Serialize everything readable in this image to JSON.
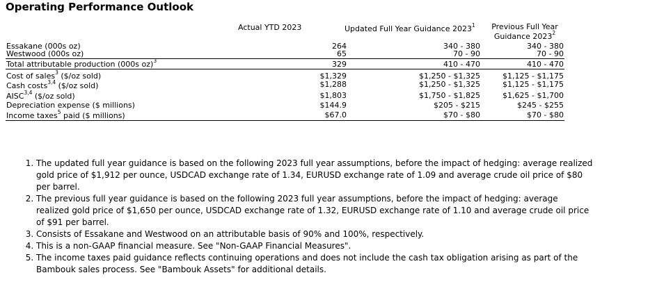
{
  "title": "Operating Performance Outlook",
  "headers": {
    "actual": "Actual YTD 2023",
    "updated": "Updated Full Year Guidance 2023",
    "updated_sup": "1",
    "previous": "Previous Full Year Guidance 2023",
    "previous_sup": "2"
  },
  "rows": [
    {
      "label": "Essakane (000s oz)",
      "sup": "",
      "label_rest": "",
      "actual": "264",
      "updated": "340 - 380",
      "previous": "340 - 380"
    },
    {
      "label": "Westwood (000s oz)",
      "sup": "",
      "label_rest": "",
      "actual": "65",
      "updated": "70 - 90",
      "previous": "70 - 90"
    },
    {
      "label": "Total attributable production (000s oz)",
      "sup": "3",
      "label_rest": "",
      "actual": "329",
      "updated": "410 - 470",
      "previous": "410 - 470"
    },
    {
      "label": "Cost of sales",
      "sup": "3",
      "label_rest": " ($/oz sold)",
      "actual": "$1,329",
      "updated": "$1,250 - $1,325",
      "previous": "$1,125 - $1,175"
    },
    {
      "label": "Cash costs",
      "sup": "3,4",
      "label_rest": " ($/oz sold)",
      "actual": "$1,288",
      "updated": "$1,250 - $1,325",
      "previous": "$1,125 - $1,175"
    },
    {
      "label": "AISC",
      "sup": "3,4",
      "label_rest": " ($/oz sold)",
      "actual": "$1,803",
      "updated": "$1,750 - $1,825",
      "previous": "$1,625 - $1,700"
    },
    {
      "label": "Depreciation expense ($ millions)",
      "sup": "",
      "label_rest": "",
      "actual": "$144.9",
      "updated": "$205 - $215",
      "previous": "$245 - $255"
    },
    {
      "label": "Income taxes",
      "sup": "5",
      "label_rest": " paid ($ millions)",
      "actual": "$67.0",
      "updated": "$70 - $80",
      "previous": "$70 - $80"
    }
  ],
  "notes": [
    "The updated full year guidance is based on the following 2023 full year assumptions, before the impact of hedging: average realized gold price of $1,912 per ounce, USDCAD exchange rate of 1.34, EURUSD exchange rate of 1.09 and average crude oil price of $80 per barrel.",
    "The previous full year guidance is based on the following 2023 full year assumptions, before the impact of hedging: average realized gold price of $1,650 per ounce, USDCAD exchange rate of 1.32, EURUSD exchange rate of 1.10 and average crude oil price of $91 per barrel.",
    "Consists of Essakane and Westwood on an attributable basis of 90% and 100%, respectively.",
    "This is a non-GAAP financial measure. See \"Non-GAAP Financial Measures\".",
    "The income taxes paid guidance reflects continuing operations and does not include the cash tax obligation arising as part of the Bambouk sales process. See \"Bambouk Assets\" for additional details."
  ]
}
